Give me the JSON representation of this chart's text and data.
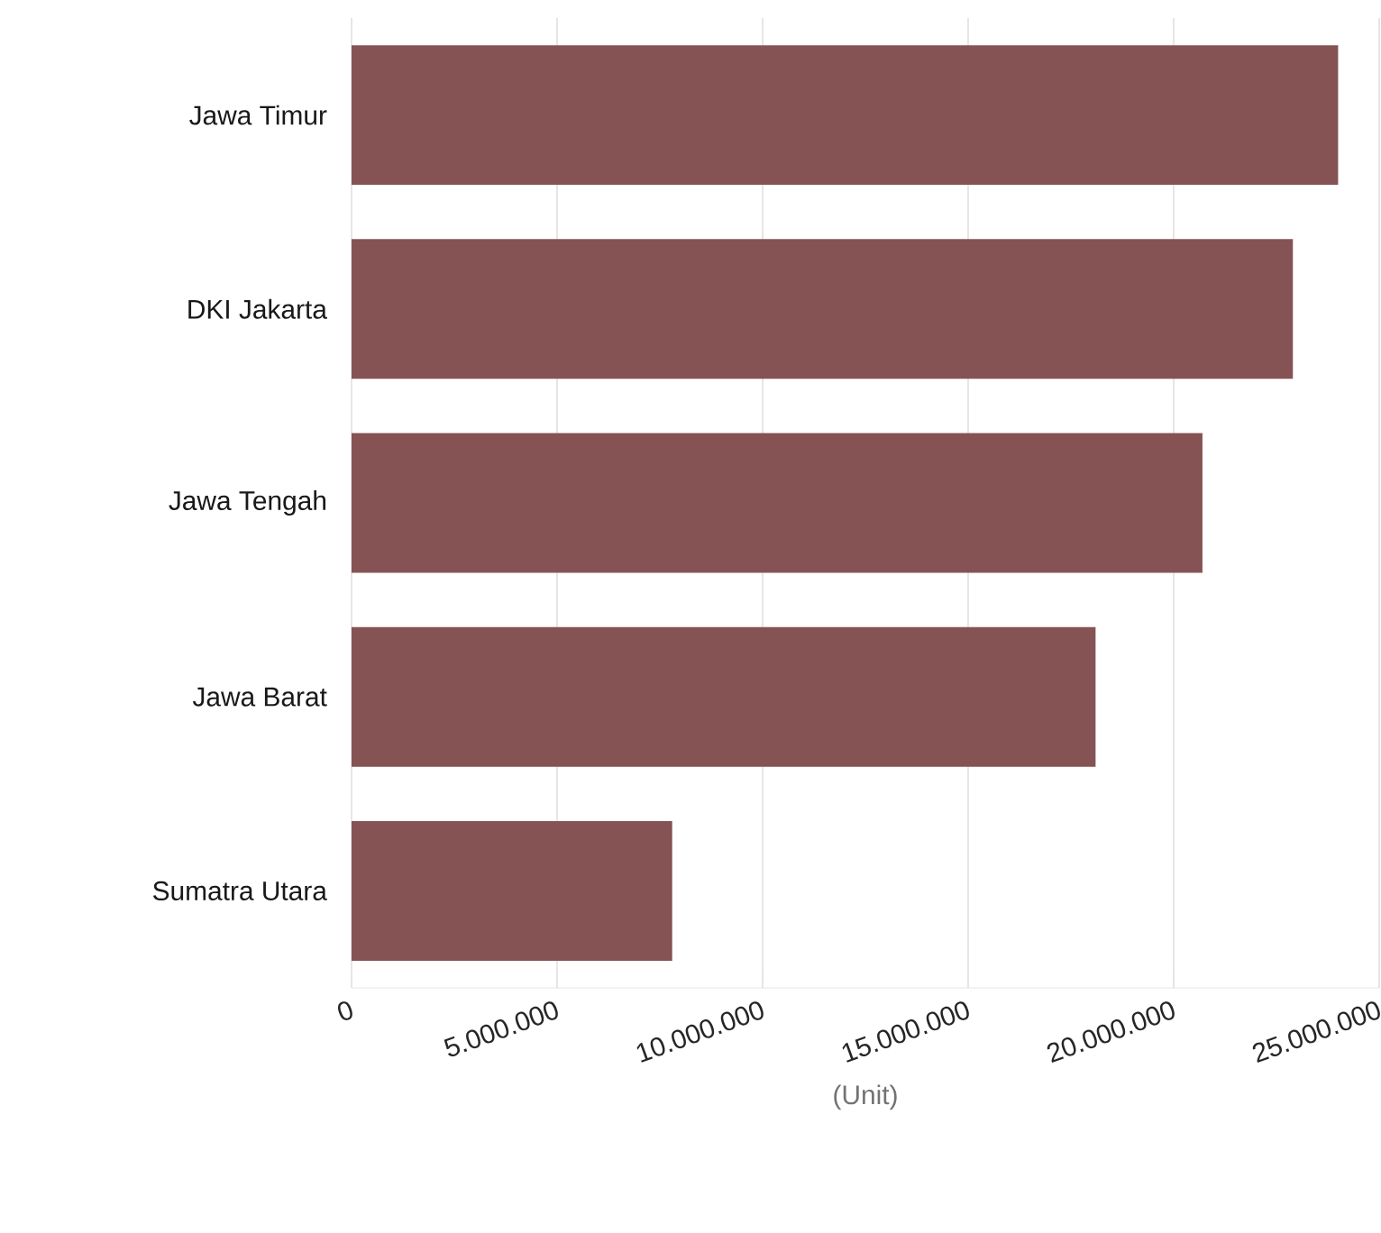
{
  "chart_data": {
    "type": "bar",
    "orientation": "horizontal",
    "xlabel": "(Unit)",
    "categories": [
      "Jawa Timur",
      "DKI Jakarta",
      "Jawa Tengah",
      "Jawa Barat",
      "Sumatra Utara"
    ],
    "values": [
      24000000,
      22900000,
      20700000,
      18100000,
      7800000
    ],
    "color": "#855353",
    "xlim": [
      0,
      25000000
    ],
    "xticks": [
      0,
      {
        "value": 5000000,
        "label": "5.000.000"
      },
      {
        "value": 10000000,
        "label": "10.000.000"
      },
      {
        "value": 15000000,
        "label": "15.000.000"
      },
      {
        "value": 20000000,
        "label": "20.000.000"
      },
      {
        "value": 25000000,
        "label": "25.000.000"
      }
    ],
    "grid": "x"
  }
}
